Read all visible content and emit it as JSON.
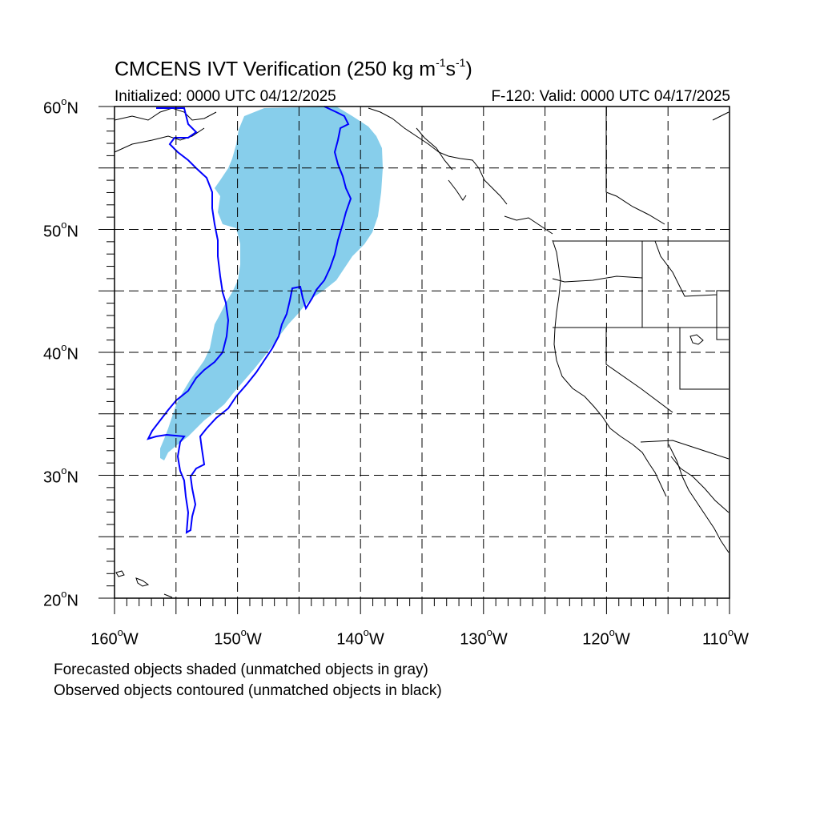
{
  "title": {
    "main": "CMCENS IVT Verification (250 kg m",
    "sup1": "-1",
    "mid": "s",
    "sup2": "-1",
    "end": ")"
  },
  "subtitle_left": "Initialized: 0000 UTC 04/12/2025",
  "subtitle_right": "F-120: Valid: 0000 UTC 04/17/2025",
  "lat_labels": [
    {
      "num": "60",
      "deg": "o",
      "hem": "N"
    },
    {
      "num": "50",
      "deg": "o",
      "hem": "N"
    },
    {
      "num": "40",
      "deg": "o",
      "hem": "N"
    },
    {
      "num": "30",
      "deg": "o",
      "hem": "N"
    },
    {
      "num": "20",
      "deg": "o",
      "hem": "N"
    }
  ],
  "lon_labels": [
    {
      "num": "160",
      "deg": "o",
      "hem": "W"
    },
    {
      "num": "150",
      "deg": "o",
      "hem": "W"
    },
    {
      "num": "140",
      "deg": "o",
      "hem": "W"
    },
    {
      "num": "130",
      "deg": "o",
      "hem": "W"
    },
    {
      "num": "120",
      "deg": "o",
      "hem": "W"
    },
    {
      "num": "110",
      "deg": "o",
      "hem": "W"
    }
  ],
  "footnotes": [
    "Forecasted objects shaded (unmatched objects in gray)",
    "Observed objects contoured (unmatched objects in black)"
  ],
  "colors": {
    "forecast_fill": "#87ceeb",
    "observed_contour": "#0000ff",
    "grid": "#000000",
    "coast": "#000000"
  }
}
